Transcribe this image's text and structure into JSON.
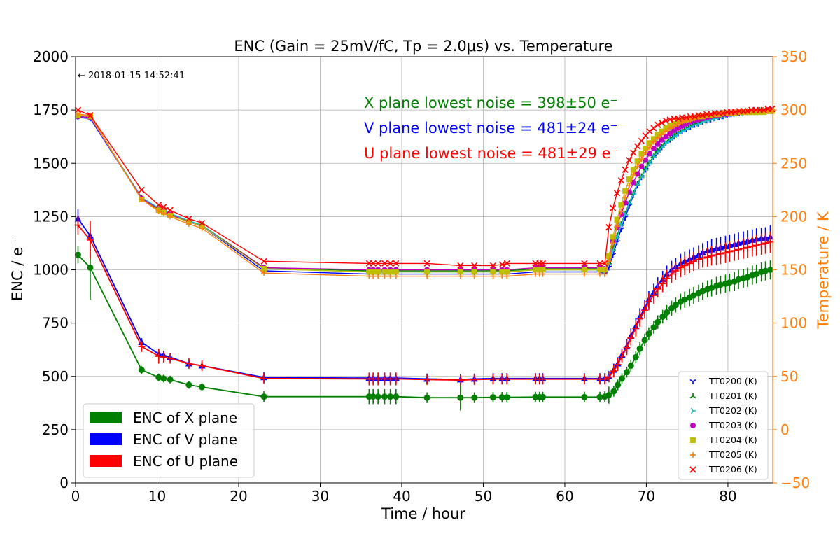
{
  "chart_data": {
    "type": "line",
    "title": "ENC (Gain = 25mV/fC, Tp = 2.0μs) vs. Temperature",
    "timestamp": "← 2018-01-15 14:52:41",
    "xlabel": "Time / hour",
    "ylabel": "ENC / e⁻",
    "y2label": "Temperature / K",
    "xlim": [
      0,
      85.5
    ],
    "ylim": [
      0,
      2000
    ],
    "y2lim": [
      -50,
      350
    ],
    "xticks": [
      "0",
      "10",
      "20",
      "30",
      "40",
      "50",
      "60",
      "70",
      "80"
    ],
    "yticks": [
      "0",
      "250",
      "500",
      "750",
      "1000",
      "1250",
      "1500",
      "1750",
      "2000"
    ],
    "y2ticks": [
      "−50",
      "0",
      "50",
      "100",
      "150",
      "200",
      "250",
      "300",
      "350"
    ],
    "grid": true,
    "colors": {
      "x_plane": "#008000",
      "v_plane": "#0000ff",
      "u_plane": "#ff0000",
      "temperature_axis": "#ff7f0e",
      "tt0200": "#0000ff",
      "tt0201": "#008000",
      "tt0202": "#17becf",
      "tt0203": "#bf00bf",
      "tt0204": "#bfbf00",
      "tt0205": "#ff7f0e",
      "tt0206": "#ff0000"
    },
    "annotations": [
      {
        "text": "X plane lowest noise = 398±50 e⁻",
        "color": "#008000"
      },
      {
        "text": "V plane lowest noise = 481±24 e⁻",
        "color": "#0000ff"
      },
      {
        "text": "U plane lowest noise = 481±29 e⁻",
        "color": "#ff0000"
      }
    ],
    "enc_legend": [
      "ENC of X plane",
      "ENC of V plane",
      "ENC of U plane"
    ],
    "temp_legend": [
      "TT0200 (K)",
      "TT0201 (K)",
      "TT0202 (K)",
      "TT0203 (K)",
      "TT0204 (K)",
      "TT0205 (K)",
      "TT0206 (K)"
    ],
    "enc_series": [
      {
        "name": "ENC of X plane",
        "color": "#008000",
        "x": [
          0.3,
          1.8,
          8.1,
          10.2,
          10.8,
          11.6,
          13.9,
          15.5,
          23.1,
          36.0,
          36.5,
          37.1,
          37.9,
          38.6,
          39.3,
          43.1,
          47.2,
          48.9,
          51.2,
          52.3,
          52.9,
          56.4,
          56.9,
          57.3,
          62.4,
          64.3,
          64.9,
          65.4,
          66.0,
          66.5,
          67.0,
          67.6,
          68.1,
          68.7,
          69.2,
          69.8,
          70.3,
          70.9,
          71.4,
          72.0,
          72.5,
          73.1,
          73.6,
          74.2,
          74.7,
          75.3,
          75.8,
          76.4,
          76.9,
          77.5,
          78.0,
          78.6,
          79.1,
          79.7,
          80.2,
          80.8,
          81.3,
          81.9,
          82.4,
          83.0,
          83.5,
          84.1,
          84.6,
          85.2
        ],
        "y": [
          1070,
          1010,
          530,
          495,
          490,
          485,
          460,
          450,
          405,
          405,
          405,
          405,
          405,
          405,
          405,
          400,
          400,
          400,
          402,
          402,
          402,
          403,
          403,
          403,
          403,
          403,
          405,
          412,
          430,
          460,
          490,
          520,
          550,
          590,
          630,
          670,
          700,
          730,
          755,
          780,
          800,
          820,
          835,
          850,
          860,
          870,
          880,
          890,
          900,
          910,
          915,
          925,
          930,
          935,
          940,
          945,
          955,
          960,
          965,
          975,
          980,
          990,
          995,
          1000
        ],
        "err": [
          40,
          150,
          18,
          18,
          18,
          18,
          18,
          18,
          25,
          35,
          35,
          35,
          35,
          35,
          35,
          25,
          60,
          25,
          25,
          25,
          25,
          25,
          25,
          25,
          25,
          25,
          25,
          40,
          25,
          25,
          25,
          25,
          28,
          28,
          30,
          30,
          30,
          30,
          32,
          32,
          35,
          35,
          35,
          38,
          38,
          40,
          40,
          40,
          40,
          40,
          40,
          42,
          42,
          42,
          42,
          45,
          45,
          45,
          45,
          45,
          45,
          45,
          45,
          45
        ]
      },
      {
        "name": "ENC of V plane",
        "color": "#0000ff",
        "x": [
          0.3,
          1.8,
          8.1,
          10.2,
          10.8,
          11.6,
          13.9,
          15.5,
          23.1,
          36.0,
          36.5,
          37.1,
          37.9,
          38.6,
          39.3,
          43.1,
          47.2,
          48.9,
          51.2,
          52.3,
          52.9,
          56.4,
          56.9,
          57.3,
          62.4,
          64.3,
          64.9,
          65.4,
          66.0,
          66.5,
          67.0,
          67.6,
          68.1,
          68.7,
          69.2,
          69.8,
          70.3,
          70.9,
          71.4,
          72.0,
          72.5,
          73.1,
          73.6,
          74.2,
          74.7,
          75.3,
          75.8,
          76.4,
          76.9,
          77.5,
          78.0,
          78.6,
          79.1,
          79.7,
          80.2,
          80.8,
          81.3,
          81.9,
          82.4,
          83.0,
          83.5,
          84.1,
          84.6,
          85.2
        ],
        "y": [
          1240,
          1160,
          660,
          605,
          600,
          590,
          560,
          550,
          495,
          492,
          492,
          492,
          492,
          492,
          492,
          488,
          485,
          488,
          490,
          490,
          490,
          490,
          490,
          490,
          490,
          490,
          490,
          500,
          530,
          560,
          600,
          640,
          690,
          735,
          780,
          820,
          860,
          895,
          925,
          955,
          980,
          1000,
          1015,
          1030,
          1040,
          1050,
          1060,
          1070,
          1080,
          1090,
          1095,
          1100,
          1105,
          1110,
          1115,
          1120,
          1125,
          1130,
          1135,
          1140,
          1145,
          1148,
          1150,
          1155
        ],
        "err": [
          45,
          30,
          20,
          20,
          20,
          20,
          20,
          20,
          25,
          25,
          25,
          25,
          25,
          25,
          25,
          25,
          25,
          25,
          25,
          25,
          25,
          25,
          25,
          25,
          25,
          25,
          25,
          25,
          30,
          30,
          30,
          35,
          35,
          40,
          40,
          40,
          40,
          40,
          40,
          40,
          40,
          42,
          42,
          45,
          45,
          45,
          45,
          45,
          45,
          45,
          50,
          50,
          50,
          50,
          50,
          50,
          50,
          50,
          50,
          50,
          50,
          50,
          50,
          55
        ]
      },
      {
        "name": "ENC of U plane",
        "color": "#ff0000",
        "x": [
          0.3,
          1.8,
          8.1,
          10.2,
          10.8,
          11.6,
          13.9,
          15.5,
          23.1,
          36.0,
          36.5,
          37.1,
          37.9,
          38.6,
          39.3,
          43.1,
          47.2,
          48.9,
          51.2,
          52.3,
          52.9,
          56.4,
          56.9,
          57.3,
          62.4,
          64.3,
          64.9,
          65.4,
          66.0,
          66.5,
          67.0,
          67.6,
          68.1,
          68.7,
          69.2,
          69.8,
          70.3,
          70.9,
          71.4,
          72.0,
          72.5,
          73.1,
          73.6,
          74.2,
          74.7,
          75.3,
          75.8,
          76.4,
          76.9,
          77.5,
          78.0,
          78.6,
          79.1,
          79.7,
          80.2,
          80.8,
          81.3,
          81.9,
          82.4,
          83.0,
          83.5,
          84.1,
          84.6,
          85.2
        ],
        "y": [
          1210,
          1140,
          640,
          595,
          590,
          585,
          560,
          550,
          490,
          488,
          488,
          488,
          488,
          488,
          488,
          485,
          482,
          485,
          487,
          487,
          487,
          487,
          487,
          487,
          487,
          487,
          487,
          497,
          525,
          555,
          595,
          635,
          680,
          725,
          770,
          810,
          850,
          880,
          910,
          935,
          960,
          980,
          995,
          1010,
          1020,
          1030,
          1040,
          1050,
          1055,
          1060,
          1065,
          1070,
          1075,
          1080,
          1085,
          1090,
          1095,
          1100,
          1105,
          1110,
          1115,
          1120,
          1125,
          1130
        ],
        "err": [
          45,
          90,
          25,
          35,
          25,
          25,
          25,
          25,
          25,
          30,
          30,
          30,
          30,
          30,
          30,
          25,
          25,
          25,
          25,
          25,
          25,
          25,
          25,
          25,
          25,
          25,
          25,
          25,
          30,
          30,
          30,
          35,
          35,
          38,
          38,
          40,
          40,
          40,
          40,
          40,
          40,
          42,
          42,
          45,
          45,
          45,
          45,
          45,
          45,
          45,
          45,
          48,
          48,
          48,
          48,
          48,
          48,
          48,
          48,
          48,
          50,
          50,
          50,
          50
        ]
      }
    ],
    "temp_x": [
      0.3,
      1.8,
      8.1,
      10.2,
      10.8,
      11.6,
      13.9,
      15.5,
      23.1,
      36.0,
      36.5,
      37.1,
      37.9,
      38.6,
      39.3,
      43.1,
      47.2,
      48.9,
      51.2,
      52.3,
      52.9,
      56.4,
      56.9,
      57.3,
      62.4,
      64.3,
      64.9,
      65.4,
      65.9,
      66.4,
      66.9,
      67.4,
      67.9,
      68.4,
      68.9,
      69.4,
      69.9,
      70.4,
      70.9,
      71.4,
      71.9,
      72.4,
      72.9,
      73.4,
      73.9,
      74.4,
      74.9,
      75.4,
      75.9,
      76.4,
      76.9,
      77.4,
      77.9,
      78.4,
      78.9,
      79.4,
      79.9,
      80.4,
      80.9,
      81.4,
      81.9,
      82.4,
      82.9,
      83.4,
      83.9,
      84.4,
      84.9,
      85.4
    ],
    "temp_series": [
      {
        "name": "TT0200 (K)",
        "color": "#0000ff",
        "marker": "tri_down",
        "y": [
          293,
          292,
          217,
          207,
          205,
          202,
          195,
          191,
          149,
          146,
          146,
          146,
          146,
          146,
          146,
          146,
          146,
          146,
          146,
          146,
          146,
          148,
          148,
          148,
          148,
          148,
          146,
          152,
          164,
          176,
          188,
          199,
          210,
          220,
          229,
          237,
          244,
          250,
          256,
          261,
          265,
          269,
          272,
          275,
          278,
          280,
          282,
          284,
          286,
          287,
          289,
          290,
          291,
          292,
          293,
          294,
          295,
          296,
          297,
          297,
          298,
          298,
          298,
          299,
          299,
          299,
          299,
          299
        ]
      },
      {
        "name": "TT0201 (K)",
        "color": "#008000",
        "marker": "tri_up",
        "y": [
          294,
          293,
          218,
          207,
          205,
          202,
          196,
          192,
          152,
          149,
          149,
          149,
          149,
          149,
          149,
          149,
          149,
          149,
          149,
          149,
          149,
          151,
          151,
          151,
          151,
          151,
          150,
          157,
          170,
          182,
          193,
          203,
          213,
          222,
          231,
          238,
          245,
          251,
          257,
          262,
          266,
          270,
          273,
          276,
          279,
          281,
          283,
          285,
          287,
          288,
          290,
          291,
          292,
          293,
          294,
          295,
          296,
          297,
          297,
          298,
          298,
          299,
          299,
          299,
          300,
          300,
          300,
          300
        ]
      },
      {
        "name": "TT0202 (K)",
        "color": "#17becf",
        "marker": "tri_right",
        "y": [
          294,
          293,
          218,
          208,
          206,
          203,
          196,
          192,
          151,
          148,
          148,
          148,
          148,
          148,
          148,
          148,
          148,
          148,
          148,
          148,
          148,
          150,
          150,
          150,
          150,
          150,
          149,
          155,
          168,
          180,
          192,
          202,
          212,
          221,
          230,
          237,
          244,
          250,
          256,
          261,
          265,
          269,
          272,
          275,
          278,
          280,
          282,
          284,
          286,
          287,
          289,
          290,
          291,
          292,
          293,
          294,
          295,
          296,
          296,
          297,
          297,
          298,
          298,
          298,
          299,
          299,
          299,
          299
        ]
      },
      {
        "name": "TT0203 (K)",
        "color": "#bf00bf",
        "marker": "circle",
        "y": [
          294,
          293,
          217,
          207,
          205,
          202,
          195,
          191,
          152,
          150,
          150,
          150,
          150,
          150,
          150,
          150,
          150,
          150,
          150,
          150,
          150,
          152,
          152,
          152,
          152,
          152,
          151,
          162,
          177,
          190,
          202,
          213,
          223,
          232,
          240,
          247,
          253,
          259,
          264,
          268,
          272,
          275,
          278,
          281,
          283,
          285,
          287,
          289,
          290,
          291,
          292,
          293,
          294,
          295,
          295,
          296,
          296,
          297,
          297,
          298,
          298,
          298,
          299,
          299,
          299,
          299,
          300,
          300
        ]
      },
      {
        "name": "TT0204 (K)",
        "color": "#bfbf00",
        "marker": "square",
        "y": [
          295,
          294,
          216,
          206,
          204,
          201,
          195,
          191,
          151,
          148,
          148,
          148,
          148,
          148,
          148,
          148,
          148,
          148,
          148,
          148,
          148,
          150,
          150,
          150,
          150,
          150,
          150,
          163,
          181,
          197,
          211,
          224,
          235,
          244,
          252,
          259,
          264,
          269,
          273,
          277,
          280,
          283,
          285,
          287,
          289,
          290,
          291,
          292,
          293,
          294,
          294,
          295,
          295,
          296,
          296,
          297,
          297,
          297,
          297,
          298,
          298,
          298,
          298,
          298,
          298,
          298,
          299,
          299
        ]
      },
      {
        "name": "TT0205 (K)",
        "color": "#ff7f0e",
        "marker": "plus",
        "y": [
          296,
          295,
          216,
          205,
          203,
          200,
          193,
          189,
          147,
          144,
          144,
          144,
          144,
          144,
          144,
          144,
          144,
          144,
          144,
          144,
          144,
          146,
          146,
          146,
          146,
          146,
          146,
          158,
          175,
          191,
          205,
          218,
          229,
          239,
          247,
          254,
          260,
          265,
          270,
          274,
          277,
          280,
          283,
          285,
          287,
          289,
          290,
          291,
          292,
          293,
          294,
          295,
          295,
          296,
          296,
          297,
          297,
          297,
          298,
          298,
          298,
          298,
          299,
          299,
          299,
          299,
          299,
          299
        ]
      },
      {
        "name": "TT0206 (K)",
        "color": "#ff0000",
        "marker": "x",
        "y": [
          300,
          295,
          225,
          211,
          209,
          206,
          198,
          194,
          158,
          156,
          156,
          156,
          156,
          156,
          156,
          156,
          154,
          154,
          154,
          155,
          156,
          156,
          156,
          156,
          156,
          156,
          156,
          190,
          208,
          222,
          234,
          244,
          253,
          260,
          266,
          271,
          276,
          280,
          283,
          286,
          288,
          290,
          291,
          292,
          292,
          293,
          293,
          294,
          294,
          295,
          295,
          296,
          296,
          297,
          297,
          297,
          298,
          298,
          298,
          299,
          299,
          299,
          300,
          300,
          300,
          300,
          301,
          301
        ]
      }
    ]
  }
}
